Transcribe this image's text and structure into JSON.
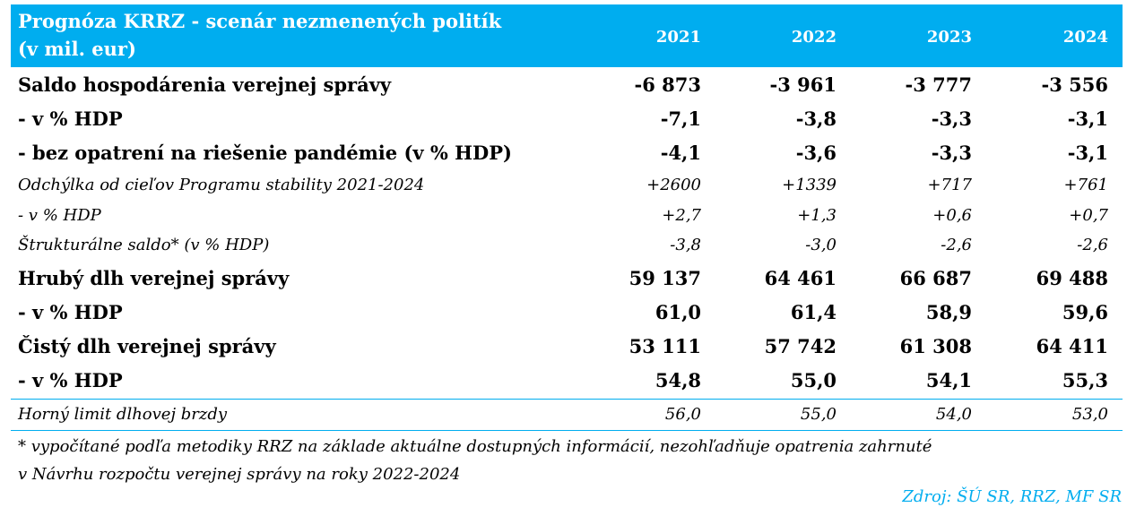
{
  "chart_data": {
    "type": "table",
    "title_line1": "Prognóza KRRZ - scenár nezmenených politík",
    "title_line2": "(v mil. eur)",
    "columns": [
      "2021",
      "2022",
      "2023",
      "2024"
    ],
    "rows": [
      {
        "label": "Saldo hospodárenia verejnej správy",
        "style": "bold",
        "values": [
          "-6 873",
          "-3 961",
          "-3 777",
          "-3 556"
        ]
      },
      {
        "label": "- v % HDP",
        "style": "bold",
        "values": [
          "-7,1",
          "-3,8",
          "-3,3",
          "-3,1"
        ]
      },
      {
        "label": "- bez opatrení na riešenie pandémie (v % HDP)",
        "style": "bold",
        "values": [
          "-4,1",
          "-3,6",
          "-3,3",
          "-3,1"
        ]
      },
      {
        "label": "Odchýlka od cieľov Programu stability 2021-2024",
        "style": "italic",
        "values": [
          "+2600",
          "+1339",
          "+717",
          "+761"
        ]
      },
      {
        "label": "- v % HDP",
        "style": "italic",
        "values": [
          "+2,7",
          "+1,3",
          "+0,6",
          "+0,7"
        ]
      },
      {
        "label": "Štrukturálne saldo* (v % HDP)",
        "style": "italic",
        "values": [
          "-3,8",
          "-3,0",
          "-2,6",
          "-2,6"
        ]
      },
      {
        "label": "Hrubý dlh verejnej správy",
        "style": "bold",
        "values": [
          "59 137",
          "64 461",
          "66 687",
          "69 488"
        ]
      },
      {
        "label": "- v % HDP",
        "style": "bold",
        "values": [
          "61,0",
          "61,4",
          "58,9",
          "59,6"
        ]
      },
      {
        "label": "Čistý dlh verejnej správy",
        "style": "bold",
        "values": [
          "53 111",
          "57 742",
          "61 308",
          "64 411"
        ]
      },
      {
        "label": "- v % HDP",
        "style": "bold",
        "values": [
          "54,8",
          "55,0",
          "54,1",
          "55,3"
        ]
      },
      {
        "label": "Horný limit dlhovej brzdy",
        "style": "italic",
        "values": [
          "56,0",
          "55,0",
          "54,0",
          "53,0"
        ]
      }
    ]
  },
  "footnote_line1": "* vypočítané podľa metodiky RRZ na základe aktuálne dostupných informácií, nezohľadňuje opatrenia zahrnuté",
  "footnote_line2": "v Návrhu rozpočtu verejnej správy na roky 2022-2024",
  "source": "Zdroj: ŠÚ SR, RRZ, MF SR",
  "colors": {
    "header_bg": "#00adef",
    "header_text": "#ffffff",
    "source_text": "#00adef"
  }
}
